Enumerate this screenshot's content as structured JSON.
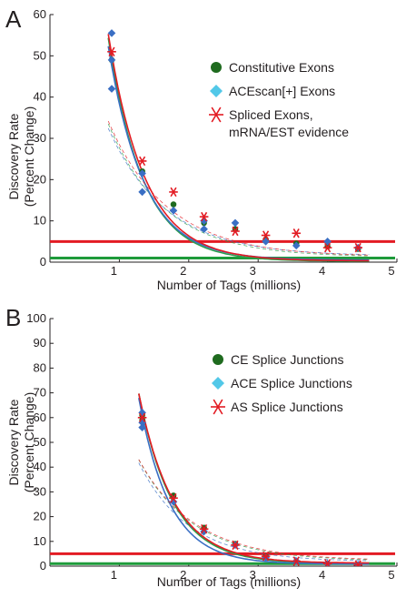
{
  "chart_data": [
    {
      "panel": "A",
      "type": "scatter",
      "xlabel": "Number of Tags (millions)",
      "ylabel": [
        "Discovery Rate",
        "(Percent Change)"
      ],
      "xlim": [
        0,
        5
      ],
      "ylim": [
        0,
        60
      ],
      "xticks": [
        1,
        2,
        3,
        4,
        5
      ],
      "yticks": [
        0,
        10,
        20,
        30,
        40,
        50,
        60
      ],
      "legend_position": "right",
      "threshold_line": {
        "y": 5,
        "color": "#e31b23"
      },
      "baseline_line": {
        "y": 1,
        "color": "#1e9b3a"
      },
      "series": [
        {
          "name": "Constitutive Exons",
          "marker": "circle",
          "color": "#1f6b1f",
          "x": [
            0.89,
            1.33,
            1.78,
            2.22,
            2.67,
            3.11,
            3.55,
            4.0,
            4.44
          ],
          "y": [
            49,
            22,
            14,
            9.5,
            8,
            5.5,
            4.5,
            3.8,
            3.2
          ],
          "fit": {
            "a": 49,
            "b": 0.2,
            "k": 2.0
          }
        },
        {
          "name": "ACEscan[+] Exons",
          "marker": "diamond",
          "color": "#52c8e8",
          "x": [
            0.89,
            0.89,
            0.89,
            1.33,
            1.33,
            1.78,
            2.22,
            2.22,
            2.67,
            3.11,
            3.55,
            4.0,
            4.44
          ],
          "y": [
            55.5,
            42,
            49,
            21.5,
            17,
            12.5,
            8,
            10,
            9.5,
            5,
            4,
            5,
            3.5
          ],
          "fit": {
            "a": 47,
            "b": 0.5,
            "k": 1.95
          }
        },
        {
          "name": "Spliced Exons,\nmRNA/EST evidence",
          "marker": "asterisk",
          "color": "#e31b23",
          "x": [
            0.89,
            1.33,
            1.78,
            2.22,
            2.67,
            3.11,
            3.55,
            4.0,
            4.44
          ],
          "y": [
            51,
            24.5,
            17,
            11,
            7.5,
            6.5,
            7,
            3.5,
            3.5
          ],
          "fit": {
            "a": 50,
            "b": 0.3,
            "k": 1.9
          }
        }
      ]
    },
    {
      "panel": "B",
      "type": "scatter",
      "xlabel": "Number of Tags (millions)",
      "ylabel": [
        "Discovery Rate",
        "(Percent Change)"
      ],
      "xlim": [
        0,
        5
      ],
      "ylim": [
        0,
        100
      ],
      "xticks": [
        1,
        2,
        3,
        4,
        5
      ],
      "yticks": [
        0,
        10,
        20,
        30,
        40,
        50,
        60,
        70,
        80,
        90,
        100
      ],
      "legend_position": "right",
      "threshold_line": {
        "y": 5,
        "color": "#e31b23"
      },
      "baseline_line": {
        "y": 1,
        "color": "#1e9b3a"
      },
      "series": [
        {
          "name": "CE Splice Junctions",
          "marker": "circle",
          "color": "#1f6b1f",
          "x": [
            1.33,
            1.33,
            1.78,
            2.22,
            2.67,
            3.11,
            3.55,
            4.0,
            4.44
          ],
          "y": [
            61,
            59,
            28.5,
            15.5,
            9,
            4,
            2,
            1,
            0.5
          ],
          "fit": {
            "a": 62,
            "b": 1.0,
            "k": 2.05
          }
        },
        {
          "name": "ACE Splice Junctions",
          "marker": "diamond",
          "color": "#52c8e8",
          "x": [
            1.33,
            1.33,
            1.33,
            1.78,
            2.22,
            2.67,
            3.11,
            3.55,
            4.0,
            4.44
          ],
          "y": [
            62,
            58,
            56,
            26,
            14,
            8.5,
            3.5,
            2,
            1,
            0.5
          ],
          "fit": {
            "a": 60,
            "b": 0.8,
            "k": 2.25
          }
        },
        {
          "name": "AS Splice Junctions",
          "marker": "asterisk",
          "color": "#e31b23",
          "x": [
            1.33,
            1.78,
            2.22,
            2.67,
            3.11,
            3.55,
            4.0,
            4.44
          ],
          "y": [
            60,
            27.5,
            15,
            8.5,
            4,
            2,
            1,
            0.5
          ],
          "fit": {
            "a": 62,
            "b": 1.2,
            "k": 2.0
          }
        }
      ]
    }
  ]
}
